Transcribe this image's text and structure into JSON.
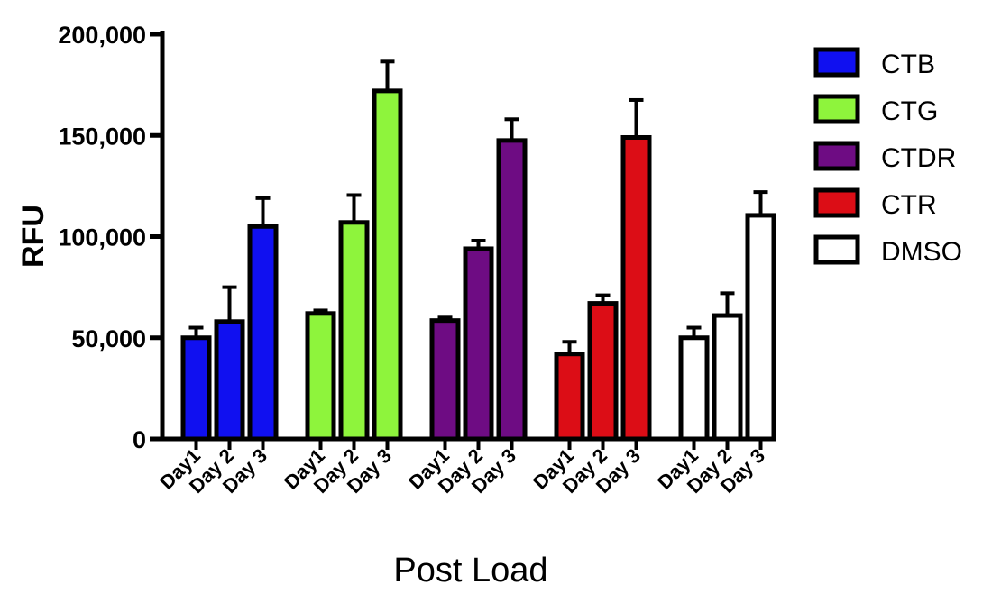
{
  "chart_data": {
    "type": "bar",
    "title": "",
    "xlabel": "Post Load",
    "ylabel": "RFU",
    "ylim": [
      0,
      200000
    ],
    "yticks": [
      0,
      50000,
      100000,
      150000,
      200000
    ],
    "ytick_labels": [
      "0",
      "50,000",
      "100,000",
      "150,000",
      "200,000"
    ],
    "categories": [
      "Day1",
      "Day 2",
      "Day 3"
    ],
    "legend_position": "right",
    "groups": [
      {
        "name": "CTB",
        "color": "#1010f0",
        "values": [
          50000,
          58000,
          105000
        ],
        "errors": [
          5000,
          17000,
          14000
        ]
      },
      {
        "name": "CTG",
        "color": "#8ef43c",
        "values": [
          62000,
          107000,
          172000
        ],
        "errors": [
          1500,
          13500,
          14500
        ]
      },
      {
        "name": "CTDR",
        "color": "#6e0c83",
        "values": [
          58500,
          94000,
          147500
        ],
        "errors": [
          1500,
          4000,
          10500
        ]
      },
      {
        "name": "CTR",
        "color": "#dc0d16",
        "values": [
          42000,
          67000,
          149000
        ],
        "errors": [
          6000,
          4000,
          18500
        ]
      },
      {
        "name": "DMSO",
        "color": "#ffffff",
        "values": [
          50000,
          61000,
          110500
        ],
        "errors": [
          5000,
          11000,
          11500
        ]
      }
    ]
  }
}
